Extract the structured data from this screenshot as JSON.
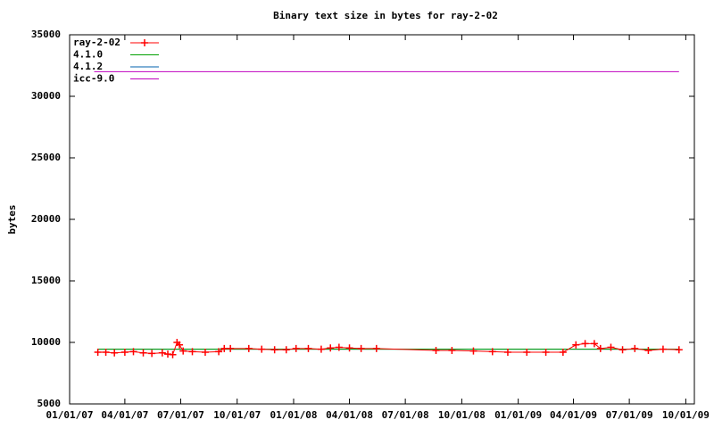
{
  "chart_data": {
    "type": "line",
    "title": "Binary text size in bytes for ray-2-02",
    "y_label": "bytes",
    "legend": "top-left",
    "xlim": [
      "2007-01-01",
      "2009-10-15"
    ],
    "xticks": [
      {
        "value": "2007-01-01",
        "label": "01/01/07"
      },
      {
        "value": "2007-04-01",
        "label": "04/01/07"
      },
      {
        "value": "2007-07-01",
        "label": "07/01/07"
      },
      {
        "value": "2007-10-01",
        "label": "10/01/07"
      },
      {
        "value": "2008-01-01",
        "label": "01/01/08"
      },
      {
        "value": "2008-04-01",
        "label": "04/01/08"
      },
      {
        "value": "2008-07-01",
        "label": "07/01/08"
      },
      {
        "value": "2008-10-01",
        "label": "10/01/08"
      },
      {
        "value": "2009-01-01",
        "label": "01/01/09"
      },
      {
        "value": "2009-04-01",
        "label": "04/01/09"
      },
      {
        "value": "2009-07-01",
        "label": "07/01/09"
      },
      {
        "value": "2009-10-01",
        "label": "10/01/09"
      }
    ],
    "ylim": [
      5000,
      35000
    ],
    "yticks": [
      5000,
      10000,
      15000,
      20000,
      25000,
      30000,
      35000
    ],
    "series": [
      {
        "name": "ray-2-02",
        "color": "#ff0000",
        "marker": "plus",
        "x": [
          "2007-02-16",
          "2007-03-01",
          "2007-03-15",
          "2007-04-01",
          "2007-04-15",
          "2007-05-01",
          "2007-05-15",
          "2007-06-01",
          "2007-06-10",
          "2007-06-18",
          "2007-06-25",
          "2007-06-29",
          "2007-07-05",
          "2007-07-20",
          "2007-08-10",
          "2007-09-01",
          "2007-09-10",
          "2007-09-20",
          "2007-10-20",
          "2007-11-10",
          "2007-12-01",
          "2007-12-20",
          "2008-01-05",
          "2008-01-25",
          "2008-02-15",
          "2008-03-01",
          "2008-03-15",
          "2008-04-01",
          "2008-04-20",
          "2008-05-15",
          "2008-08-20",
          "2008-09-15",
          "2008-10-20",
          "2008-11-20",
          "2008-12-15",
          "2009-01-15",
          "2009-02-15",
          "2009-03-15",
          "2009-04-05",
          "2009-04-20",
          "2009-05-05",
          "2009-05-15",
          "2009-06-01",
          "2009-06-20",
          "2009-07-10",
          "2009-08-01",
          "2009-08-25",
          "2009-09-20"
        ],
        "values": [
          9200,
          9200,
          9150,
          9200,
          9250,
          9150,
          9100,
          9150,
          9050,
          9000,
          10000,
          9800,
          9300,
          9250,
          9200,
          9250,
          9500,
          9500,
          9500,
          9450,
          9400,
          9400,
          9500,
          9500,
          9450,
          9550,
          9600,
          9550,
          9500,
          9500,
          9350,
          9350,
          9300,
          9250,
          9200,
          9200,
          9200,
          9200,
          9800,
          9900,
          9900,
          9500,
          9600,
          9400,
          9500,
          9350,
          9450,
          9400
        ]
      },
      {
        "name": "4.1.0",
        "color": "#00a000",
        "x": [
          "2007-02-16",
          "2009-09-20"
        ],
        "values": [
          9450,
          9450
        ]
      },
      {
        "name": "4.1.2",
        "color": "#0060ad",
        "x": [
          "2007-02-16",
          "2009-09-20"
        ],
        "values": [
          9450,
          9450
        ]
      },
      {
        "name": "icc-9.0",
        "color": "#c000c0",
        "x": [
          "2007-02-10",
          "2009-09-20"
        ],
        "values": [
          32000,
          32000
        ]
      }
    ]
  }
}
